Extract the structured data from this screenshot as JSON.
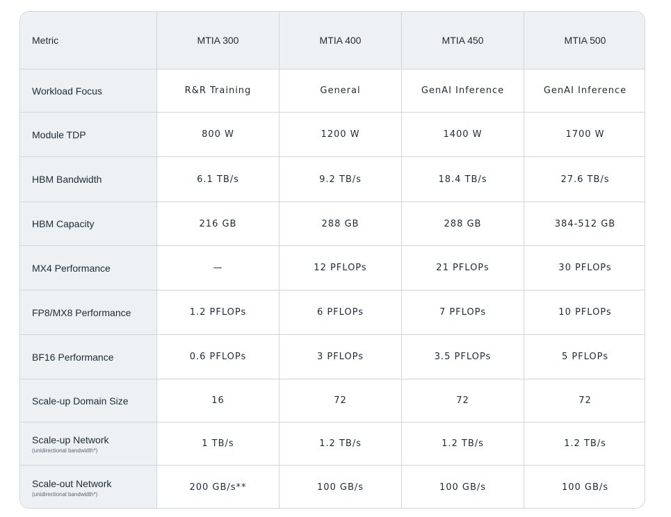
{
  "table": {
    "header": [
      "Metric",
      "MTIA 300",
      "MTIA 400",
      "MTIA 450",
      "MTIA 500"
    ],
    "rows": [
      {
        "metric": "Workload Focus",
        "values": [
          "R&R Training",
          "General",
          "GenAI Inference",
          "GenAI Inference"
        ]
      },
      {
        "metric": "Module TDP",
        "values": [
          "800 W",
          "1200 W",
          "1400 W",
          "1700 W"
        ]
      },
      {
        "metric": "HBM Bandwidth",
        "values": [
          "6.1 TB/s",
          "9.2 TB/s",
          "18.4 TB/s",
          "27.6 TB/s"
        ]
      },
      {
        "metric": "HBM Capacity",
        "values": [
          "216 GB",
          "288 GB",
          "288 GB",
          "384-512 GB"
        ]
      },
      {
        "metric": "MX4 Performance",
        "values": [
          "—",
          "12 PFLOPs",
          "21 PFLOPs",
          "30 PFLOPs"
        ]
      },
      {
        "metric": "FP8/MX8 Performance",
        "values": [
          "1.2 PFLOPs",
          "6 PFLOPs",
          "7 PFLOPs",
          "10 PFLOPs"
        ]
      },
      {
        "metric": "BF16 Performance",
        "values": [
          "0.6 PFLOPs",
          "3 PFLOPs",
          "3.5 PFLOPs",
          "5 PFLOPs"
        ]
      },
      {
        "metric": "Scale-up Domain Size",
        "values": [
          "16",
          "72",
          "72",
          "72"
        ]
      },
      {
        "metric": "Scale-up Network",
        "note": "(unidirectional bandwidth*)",
        "values": [
          "1 TB/s",
          "1.2 TB/s",
          "1.2 TB/s",
          "1.2 TB/s"
        ]
      },
      {
        "metric": "Scale-out Network",
        "note": "(unidirectional bandwidth*)",
        "values": [
          "200 GB/s**",
          "100 GB/s",
          "100 GB/s",
          "100 GB/s"
        ]
      }
    ]
  }
}
